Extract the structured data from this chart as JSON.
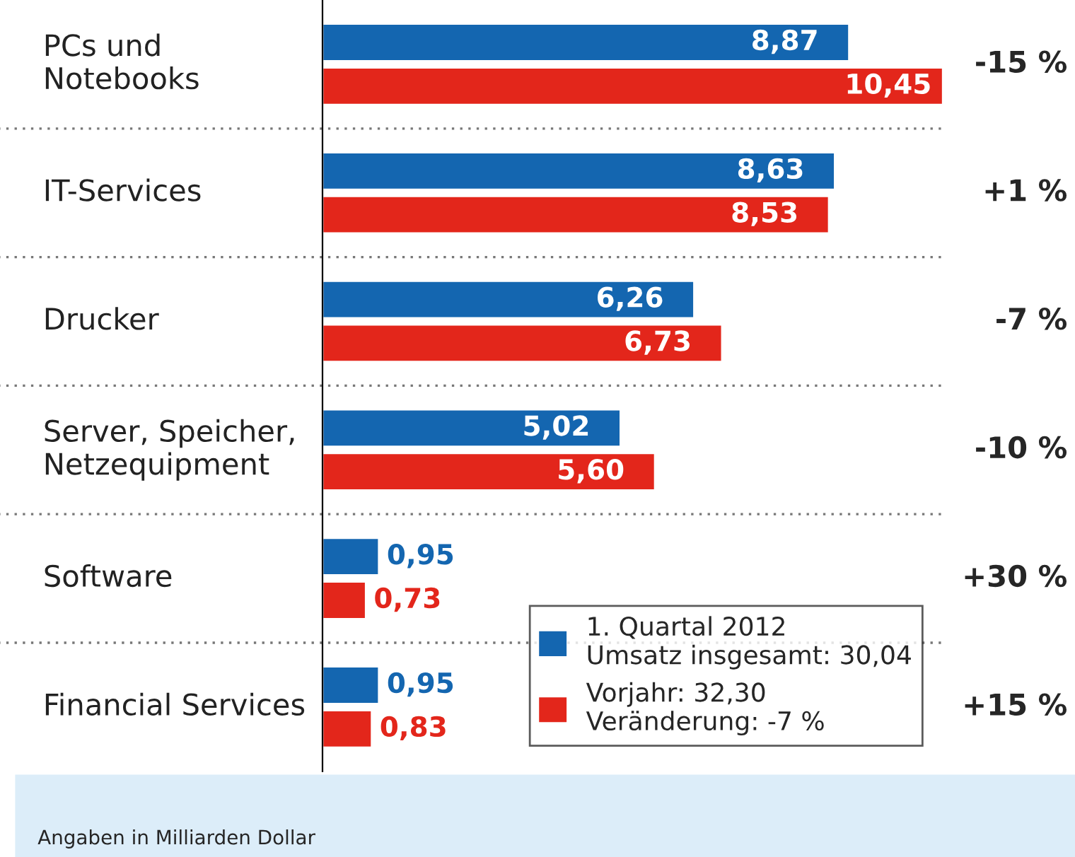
{
  "chart_data": {
    "type": "bar",
    "orientation": "horizontal",
    "categories": [
      "PCs und\nNotebooks",
      "IT-Services",
      "Drucker",
      "Server, Speicher,\nNetzequipment",
      "Software",
      "Financial Services"
    ],
    "series": [
      {
        "name": "1. Quartal 2012\nUmsatz insgesamt: 30,04",
        "color": "#1466b0",
        "values": [
          8.87,
          8.63,
          6.26,
          5.02,
          0.95,
          0.95
        ],
        "value_labels": [
          "8,87",
          "8,63",
          "6,26",
          "5,02",
          "0,95",
          "0,95"
        ]
      },
      {
        "name": "Vorjahr: 32,30\nVeränderung: -7 %",
        "color": "#e3261b",
        "values": [
          10.45,
          8.53,
          6.73,
          5.6,
          0.73,
          0.83
        ],
        "value_labels": [
          "10,45",
          "8,53",
          "6,73",
          "5,60",
          "0,73",
          "0,83"
        ]
      }
    ],
    "grid": "y",
    "legend": "bottom right",
    "annotations": [
      "-15 %",
      "+1 %",
      "-7 %",
      "-10 %",
      "+30 %",
      "+15 %",
      "Angaben in Milliarden Dollar"
    ]
  }
}
